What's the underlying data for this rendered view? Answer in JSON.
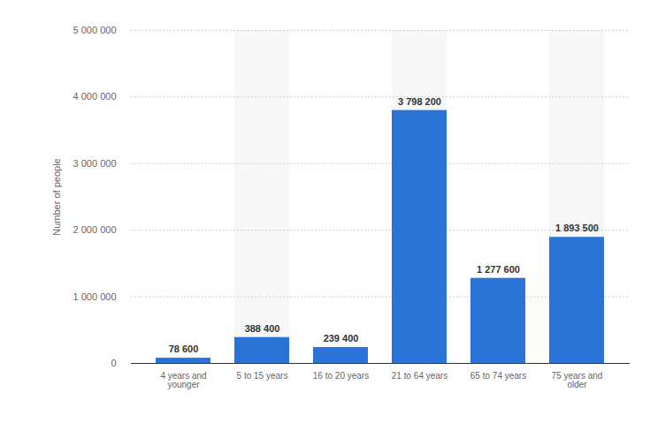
{
  "chart_data": {
    "type": "bar",
    "categories": [
      "4 years and younger",
      "5 to 15 years",
      "16 to 20 years",
      "21 to 64 years",
      "65 to 74 years",
      "75 years and older"
    ],
    "values": [
      78600,
      388400,
      239400,
      3798200,
      1277600,
      1893500
    ],
    "value_labels": [
      "78 600",
      "388 400",
      "239 400",
      "3 798 200",
      "1 277 600",
      "1 893 500"
    ],
    "data_labels": true,
    "color": "#2a74d8",
    "y_label": "Number of people",
    "ylim": [
      0,
      5000000
    ],
    "yticks": [
      {
        "value": 0,
        "label": "0"
      },
      {
        "value": 1000000,
        "label": "1 000 000"
      },
      {
        "value": 2000000,
        "label": "2 000 000"
      },
      {
        "value": 3000000,
        "label": "3 000 000"
      },
      {
        "value": 4000000,
        "label": "4 000 000"
      },
      {
        "value": 5000000,
        "label": "5 000 000"
      }
    ],
    "grid": true
  }
}
